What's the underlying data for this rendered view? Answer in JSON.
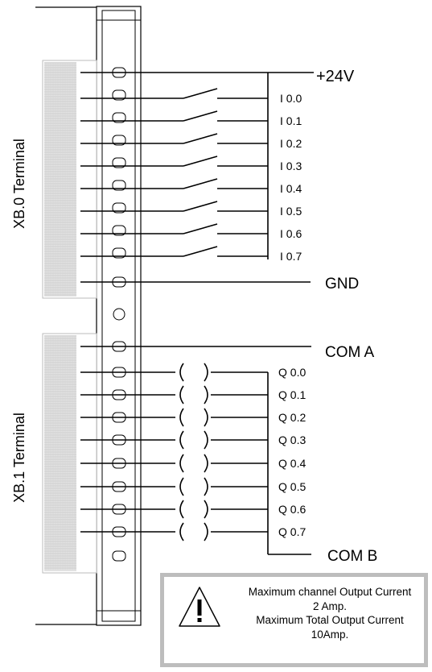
{
  "terminals": {
    "xb0_label": "XB.0 Terminal",
    "xb1_label": "XB.1 Terminal"
  },
  "inputs": {
    "supply_label": "+24V",
    "ground_label": "GND",
    "channels": [
      "I 0.0",
      "I 0.1",
      "I 0.2",
      "I 0.3",
      "I 0.4",
      "I 0.5",
      "I 0.6",
      "I 0.7"
    ]
  },
  "outputs": {
    "com_a_label": "COM A",
    "com_b_label": "COM B",
    "channels": [
      "Q 0.0",
      "Q 0.1",
      "Q 0.2",
      "Q 0.3",
      "Q 0.4",
      "Q 0.5",
      "Q 0.6",
      "Q 0.7"
    ]
  },
  "warning": {
    "icon": "warning-triangle-icon",
    "lines": [
      "Maximum channel Output Current",
      "2 Amp.",
      "Maximum Total Output Current",
      "10Amp."
    ]
  },
  "colors": {
    "line": "#000000",
    "terminal_fill": "#e3e3e3",
    "border_gray": "#bdbdbd"
  }
}
